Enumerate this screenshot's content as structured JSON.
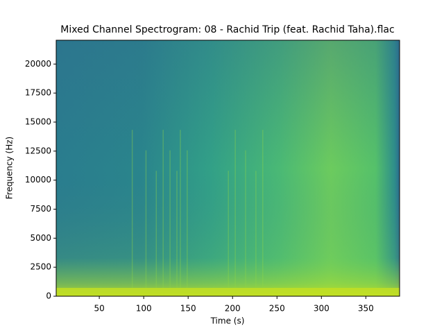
{
  "chart_data": {
    "type": "spectrogram",
    "title": "Mixed Channel Spectrogram: 08 - Rachid Trip (feat. Rachid Taha).flac",
    "x_label": "Time (s)",
    "y_label": "Frequency (Hz)",
    "xlim": [
      1.5,
      388
    ],
    "xticks": [
      50,
      100,
      150,
      200,
      250,
      300,
      350
    ],
    "ylim": [
      0,
      22050
    ],
    "yticks": [
      0,
      2500,
      5000,
      7500,
      10000,
      12500,
      15000,
      17500,
      20000
    ]
  }
}
